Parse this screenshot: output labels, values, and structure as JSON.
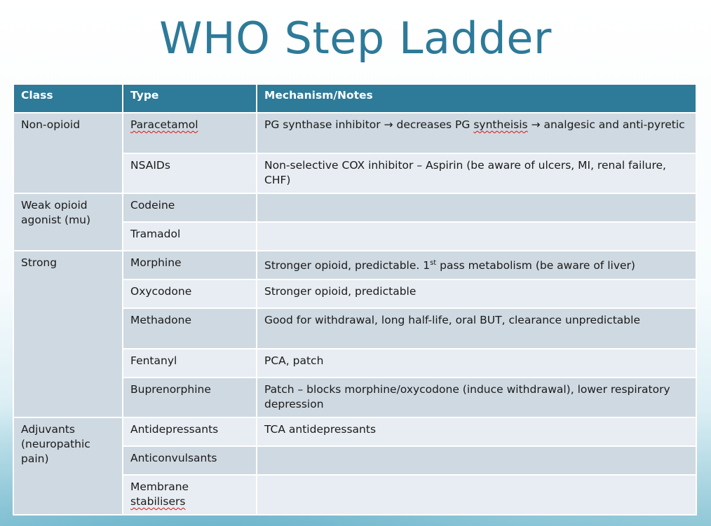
{
  "title": "WHO Step Ladder",
  "headers": [
    "Class",
    "Type",
    "Mechanism/Notes"
  ],
  "groups": {
    "nonopioid": "Non-opioid",
    "weak": "Weak opioid agonist (mu)",
    "strong": "Strong",
    "adjuvants": "Adjuvants (neuropathic pain)"
  },
  "rows": {
    "paracetamol": {
      "type": "Paracetamol",
      "notes_a": "PG synthase inhibitor → decreases PG ",
      "notes_b": "syntheisis",
      "notes_c": " → analgesic and anti-pyretic"
    },
    "nsaids": {
      "type": "NSAIDs",
      "notes": "Non-selective COX inhibitor – Aspirin (be aware of ulcers, MI, renal failure, CHF)"
    },
    "codeine": {
      "type": "Codeine",
      "notes": ""
    },
    "tramadol": {
      "type": "Tramadol",
      "notes": ""
    },
    "morphine": {
      "type": "Morphine",
      "notes_a": "Stronger opioid, predictable. 1",
      "sup": "st",
      "notes_b": " pass metabolism (be aware of liver)"
    },
    "oxycodone": {
      "type": "Oxycodone",
      "notes": "Stronger opioid, predictable"
    },
    "methadone": {
      "type": "Methadone",
      "notes": "Good for withdrawal, long half-life, oral BUT, clearance unpredictable"
    },
    "fentanyl": {
      "type": "Fentanyl",
      "notes": "PCA, patch"
    },
    "buprenorphine": {
      "type": "Buprenorphine",
      "notes": "Patch – blocks morphine/oxycodone (induce withdrawal), lower respiratory depression"
    },
    "antidepressants": {
      "type": "Antidepressants",
      "notes": "TCA antidepressants"
    },
    "anticonvulsants": {
      "type": "Anticonvulsants",
      "notes": ""
    },
    "membrane": {
      "type_a": "Membrane",
      "type_b": "stabilisers",
      "notes": ""
    }
  },
  "colors": {
    "header": "#2d7a99",
    "row_dark": "#cfd9e1",
    "row_light": "#e7edf2",
    "title": "#2d7a99"
  }
}
